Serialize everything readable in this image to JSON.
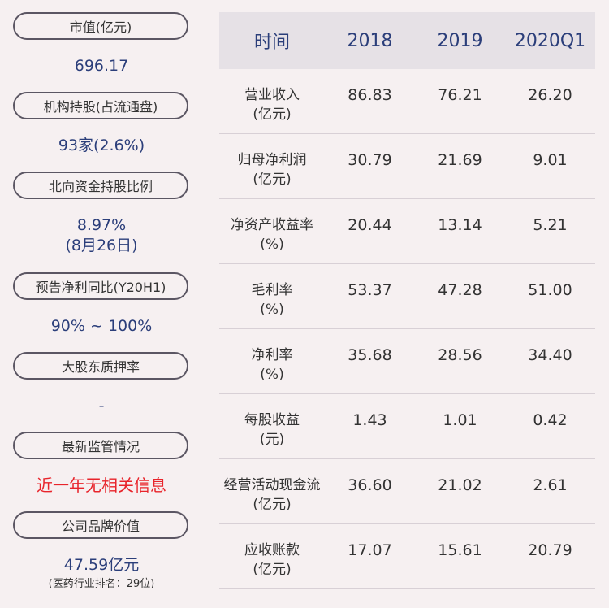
{
  "left_panel": {
    "items": [
      {
        "label": "市值(亿元)",
        "value": "696.17"
      },
      {
        "label": "机构持股(占流通盘)",
        "value": "93家(2.6%)"
      },
      {
        "label": "北向资金持股比例",
        "value": "8.97%",
        "value2": "(8月26日)"
      },
      {
        "label": "预告净利同比(Y20H1)",
        "value": "90% ~ 100%"
      },
      {
        "label": "大股东质押率",
        "value": "-"
      },
      {
        "label": "最新监管情况",
        "value": "近一年无相关信息"
      },
      {
        "label": "公司品牌价值",
        "value": "47.59亿元",
        "note": "(医药行业排名：29位)"
      }
    ]
  },
  "table": {
    "headers": [
      "时间",
      "2018",
      "2019",
      "2020Q1"
    ],
    "rows": [
      {
        "label1": "营业收入",
        "label2": "(亿元)",
        "values": [
          "86.83",
          "76.21",
          "26.20"
        ]
      },
      {
        "label1": "归母净利润",
        "label2": "(亿元)",
        "values": [
          "30.79",
          "21.69",
          "9.01"
        ]
      },
      {
        "label1": "净资产收益率",
        "label2": "(%)",
        "values": [
          "20.44",
          "13.14",
          "5.21"
        ]
      },
      {
        "label1": "毛利率",
        "label2": "(%)",
        "values": [
          "53.37",
          "47.28",
          "51.00"
        ]
      },
      {
        "label1": "净利率",
        "label2": "(%)",
        "values": [
          "35.68",
          "28.56",
          "34.40"
        ]
      },
      {
        "label1": "每股收益",
        "label2": "(元)",
        "values": [
          "1.43",
          "1.01",
          "0.42"
        ]
      },
      {
        "label1": "经营活动现金流",
        "label2": "(亿元)",
        "values": [
          "36.60",
          "21.02",
          "2.61"
        ]
      },
      {
        "label1": "应收账款",
        "label2": "(亿元)",
        "values": [
          "17.07",
          "15.61",
          "20.79"
        ]
      }
    ]
  },
  "colors": {
    "background": "#f6f0f1",
    "value_blue": "#2b3e7a",
    "alert_red": "#e8242b",
    "header_bg": "#e6e1e6"
  }
}
